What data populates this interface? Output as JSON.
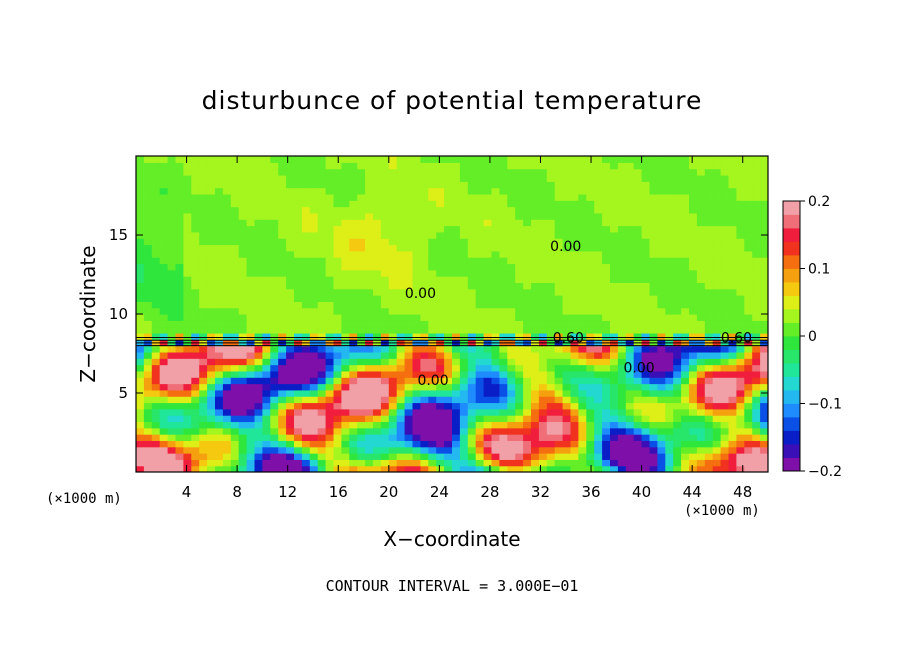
{
  "chart_data": {
    "type": "heatmap",
    "title": "disturbunce of potential temperature",
    "xlabel": "X−coordinate",
    "ylabel": "Z−coordinate",
    "x_unit": "(×1000 m)",
    "y_unit": "(×1000 m)",
    "xlim": [
      0,
      50
    ],
    "ylim": [
      0,
      20
    ],
    "x_ticks": [
      4,
      8,
      12,
      16,
      20,
      24,
      28,
      32,
      36,
      40,
      44,
      48
    ],
    "y_ticks": [
      5,
      10,
      15
    ],
    "contour_interval_text": "CONTOUR INTERVAL = 3.000E−01",
    "contour_labels": [
      {
        "text": "0.00",
        "x": 22.5,
        "z": 11.0
      },
      {
        "text": "0.00",
        "x": 34.0,
        "z": 14.0
      },
      {
        "text": "0.60",
        "x": 34.2,
        "z": 8.2
      },
      {
        "text": "0.60",
        "x": 47.5,
        "z": 8.2
      },
      {
        "text": "0.00",
        "x": 23.5,
        "z": 5.5
      },
      {
        "text": "0.00",
        "x": 39.8,
        "z": 6.3
      }
    ],
    "colorbar": {
      "range": [
        -0.2,
        0.2
      ],
      "tick_labels": [
        "0.2",
        "0.1",
        "0",
        "−0.1",
        "−0.2"
      ],
      "tick_values": [
        0.2,
        0.1,
        0,
        -0.1,
        -0.2
      ],
      "colors": [
        "#7e0fa8",
        "#3a0fb8",
        "#0a1ec8",
        "#0a50e6",
        "#1e8cff",
        "#23b9f0",
        "#22d8d0",
        "#20e69a",
        "#27e66a",
        "#2fe63c",
        "#63ee27",
        "#a5f51f",
        "#ddef17",
        "#f5c90f",
        "#f5a00f",
        "#f56e0f",
        "#f0321e",
        "#f01e3c",
        "#f06e78",
        "#f0a0a6"
      ]
    },
    "field_summary": {
      "upper_layer": {
        "z_range": [
          8.6,
          20
        ],
        "value": "near 0 (green)"
      },
      "inversion_layer": {
        "z_range": [
          8.0,
          8.6
        ],
        "value": "sharp thermal contrast, dense contours"
      },
      "lower_layer": {
        "z_range": [
          0,
          8.0
        ],
        "value": "turbulent eddies, values between −0.2 and 0.2"
      }
    }
  }
}
